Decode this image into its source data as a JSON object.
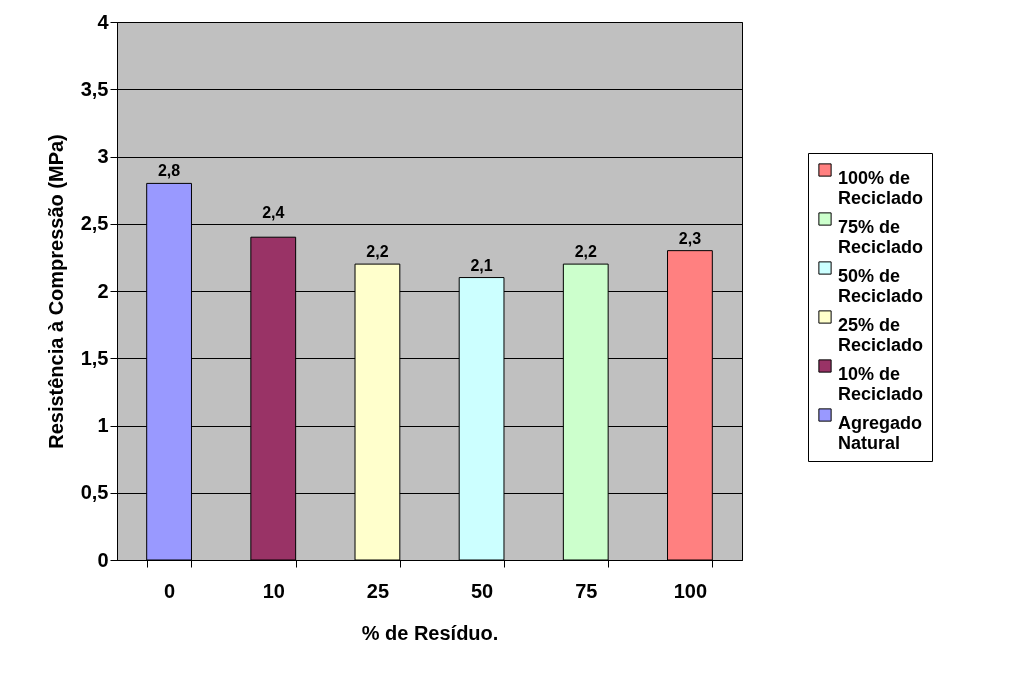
{
  "chart_data": {
    "type": "bar",
    "xlabel": "% de Resíduo.",
    "ylabel": "Resistência à Compressão (MPa)",
    "categories": [
      "0",
      "10",
      "25",
      "50",
      "75",
      "100"
    ],
    "series": [
      {
        "name": "100% de Reciclado",
        "color": "#ff8080",
        "values": [
          null,
          null,
          null,
          null,
          null,
          2.3
        ],
        "value_labels": [
          null,
          null,
          null,
          null,
          null,
          "2,3"
        ]
      },
      {
        "name": "75% de Reciclado",
        "color": "#ccffcc",
        "values": [
          null,
          null,
          null,
          null,
          2.2,
          null
        ],
        "value_labels": [
          null,
          null,
          null,
          null,
          "2,2",
          null
        ]
      },
      {
        "name": "50% de Reciclado",
        "color": "#ccffff",
        "values": [
          null,
          null,
          null,
          2.1,
          null,
          null
        ],
        "value_labels": [
          null,
          null,
          null,
          "2,1",
          null,
          null
        ]
      },
      {
        "name": "25% de Reciclado",
        "color": "#ffffcc",
        "values": [
          null,
          null,
          2.2,
          null,
          null,
          null
        ],
        "value_labels": [
          null,
          null,
          "2,2",
          null,
          null,
          null
        ]
      },
      {
        "name": "10% de Reciclado",
        "color": "#993366",
        "values": [
          null,
          2.4,
          null,
          null,
          null,
          null
        ],
        "value_labels": [
          null,
          "2,4",
          null,
          null,
          null,
          null
        ]
      },
      {
        "name": "Agregado Natural",
        "color": "#9999ff",
        "values": [
          2.8,
          null,
          null,
          null,
          null,
          null
        ],
        "value_labels": [
          "2,8",
          null,
          null,
          null,
          null,
          null
        ]
      }
    ],
    "ylim": [
      0,
      4
    ],
    "yticks": [
      0,
      {
        "value": 0.5,
        "label": "0,5"
      },
      1,
      {
        "value": 1.5,
        "label": "1,5"
      },
      2,
      {
        "value": 2.5,
        "label": "2,5"
      },
      3,
      {
        "value": 3.5,
        "label": "3,5"
      },
      4
    ],
    "grid": "y",
    "legend": "right"
  }
}
